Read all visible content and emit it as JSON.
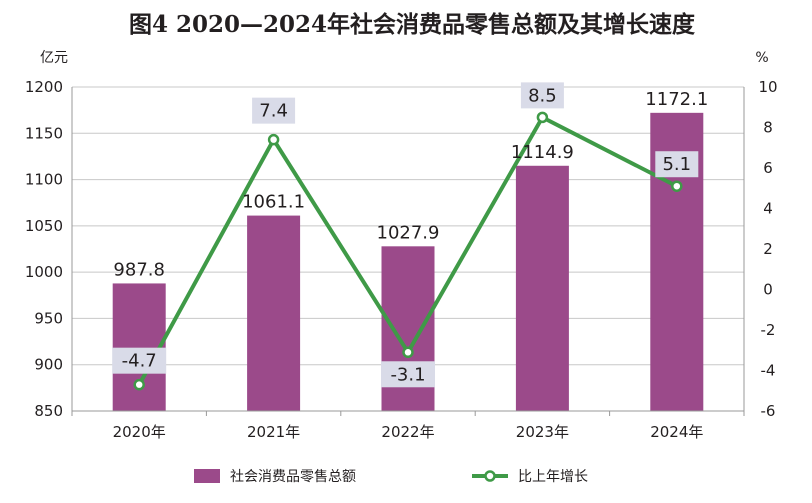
{
  "chart_data": {
    "type": "bar+line",
    "title": "图4  2020—2024年社会消费品零售总额及其增长速度",
    "left_unit": "亿元",
    "right_unit": "%",
    "categories": [
      "2020年",
      "2021年",
      "2022年",
      "2023年",
      "2024年"
    ],
    "series": [
      {
        "name": "社会消费品零售总额",
        "type": "bar",
        "axis": "left",
        "values": [
          987.8,
          1061.1,
          1027.9,
          1114.9,
          1172.1
        ],
        "labels": [
          "987.8",
          "1061.1",
          "1027.9",
          "1114.9",
          "1172.1"
        ],
        "color": "#9b4a8a"
      },
      {
        "name": "比上年增长",
        "type": "line",
        "axis": "right",
        "values": [
          -4.7,
          7.4,
          -3.1,
          8.5,
          5.1
        ],
        "labels": [
          "-4.7",
          "7.4",
          "-3.1",
          "8.5",
          "5.1"
        ],
        "color": "#3f9a47"
      }
    ],
    "left_axis": {
      "min": 850,
      "max": 1200,
      "step": 50,
      "ticks": [
        "850",
        "900",
        "950",
        "1000",
        "1050",
        "1100",
        "1150",
        "1200"
      ]
    },
    "right_axis": {
      "min": -6,
      "max": 10,
      "step": 2,
      "ticks": [
        "-6",
        "-4",
        "-2",
        "0",
        "2",
        "4",
        "6",
        "8",
        "10"
      ]
    },
    "grid": true,
    "legend_position": "bottom",
    "colors": {
      "bar": "#9b4a8a",
      "line": "#3f9a47",
      "label_box": "#d9dbe8",
      "grid": "#c8c8c8"
    }
  }
}
